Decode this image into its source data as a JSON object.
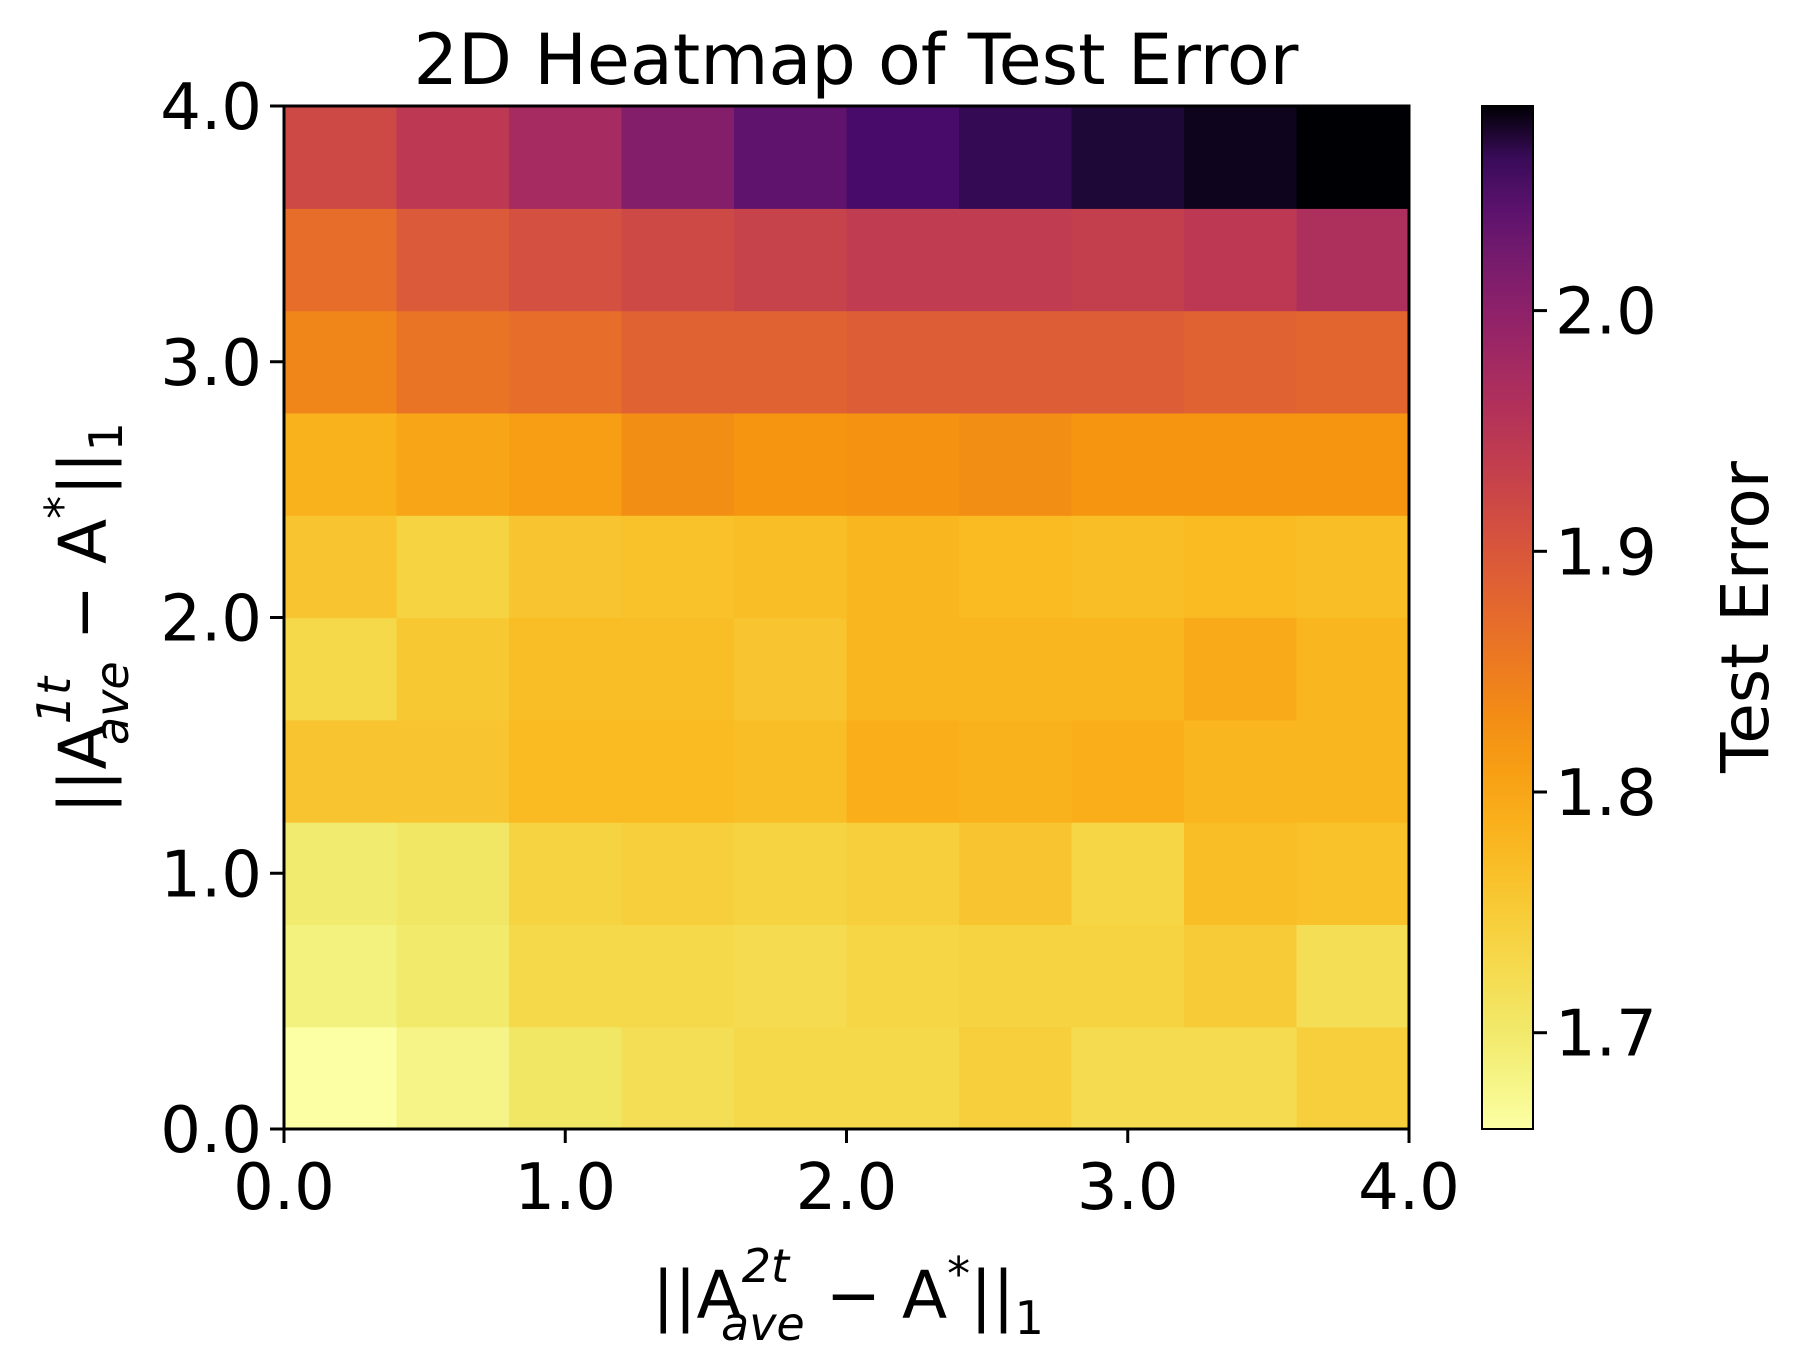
{
  "chart_data": {
    "type": "heatmap",
    "title": "2D Heatmap of Test Error",
    "xlabel_parts": {
      "open": "||A",
      "sup": "2t",
      "sub": "ave",
      "mid": " − A",
      "star": "*",
      "close": "||",
      "norm": "1"
    },
    "ylabel_parts": {
      "open": "||A",
      "sup": "1t",
      "sub": "ave",
      "mid": " − A",
      "star": "*",
      "close": "||",
      "norm": "1"
    },
    "x_range": [
      0.0,
      4.0
    ],
    "y_range": [
      0.0,
      4.0
    ],
    "x_ticks": [
      {
        "value": 0.0,
        "label": "0.0"
      },
      {
        "value": 1.0,
        "label": "1.0"
      },
      {
        "value": 2.0,
        "label": "2.0"
      },
      {
        "value": 3.0,
        "label": "3.0"
      },
      {
        "value": 4.0,
        "label": "4.0"
      }
    ],
    "y_ticks": [
      {
        "value": 0.0,
        "label": "0.0"
      },
      {
        "value": 1.0,
        "label": "1.0"
      },
      {
        "value": 2.0,
        "label": "2.0"
      },
      {
        "value": 3.0,
        "label": "3.0"
      },
      {
        "value": 4.0,
        "label": "4.0"
      }
    ],
    "grid_cols": 10,
    "grid_rows": 10,
    "values_rows_bottom_to_top": [
      [
        1.66,
        1.68,
        1.705,
        1.72,
        1.73,
        1.73,
        1.745,
        1.725,
        1.725,
        1.745
      ],
      [
        1.685,
        1.7,
        1.73,
        1.73,
        1.725,
        1.735,
        1.74,
        1.74,
        1.75,
        1.72
      ],
      [
        1.695,
        1.705,
        1.74,
        1.745,
        1.74,
        1.745,
        1.76,
        1.735,
        1.77,
        1.765
      ],
      [
        1.76,
        1.76,
        1.775,
        1.775,
        1.77,
        1.79,
        1.785,
        1.79,
        1.78,
        1.78
      ],
      [
        1.73,
        1.755,
        1.77,
        1.77,
        1.76,
        1.78,
        1.78,
        1.78,
        1.795,
        1.78
      ],
      [
        1.76,
        1.74,
        1.76,
        1.765,
        1.77,
        1.78,
        1.775,
        1.77,
        1.775,
        1.77
      ],
      [
        1.785,
        1.8,
        1.81,
        1.83,
        1.82,
        1.825,
        1.83,
        1.82,
        1.82,
        1.82
      ],
      [
        1.84,
        1.86,
        1.87,
        1.885,
        1.885,
        1.89,
        1.89,
        1.89,
        1.885,
        1.88
      ],
      [
        1.87,
        1.895,
        1.91,
        1.92,
        1.93,
        1.94,
        1.94,
        1.935,
        1.945,
        1.965
      ],
      [
        1.92,
        1.945,
        1.975,
        2.01,
        2.04,
        2.055,
        2.065,
        2.075,
        2.08,
        2.085
      ]
    ],
    "colormap": "inferno_r",
    "vmin": 1.66,
    "vmax": 2.085,
    "colorbar": {
      "label": "Test Error",
      "ticks": [
        {
          "value": 1.7,
          "label": "1.7"
        },
        {
          "value": 1.8,
          "label": "1.8"
        },
        {
          "value": 1.9,
          "label": "1.9"
        },
        {
          "value": 2.0,
          "label": "2.0"
        }
      ]
    }
  }
}
